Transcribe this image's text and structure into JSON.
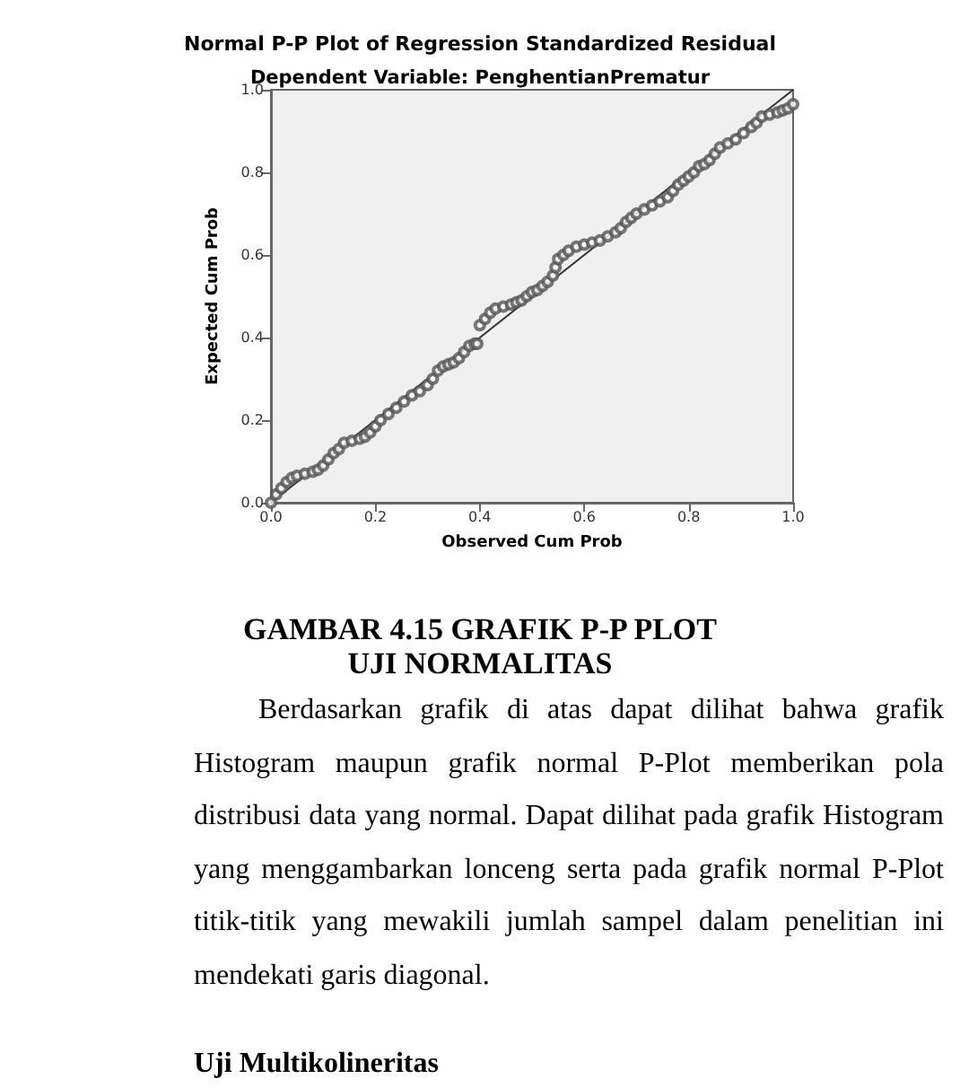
{
  "chart_data": {
    "type": "scatter",
    "title": "Normal P-P Plot of Regression Standardized Residual",
    "subtitle": "Dependent Variable: PenghentianPrematur",
    "xlabel": "Observed Cum Prob",
    "ylabel": "Expected Cum Prob",
    "xlim": [
      0,
      1
    ],
    "ylim": [
      0,
      1
    ],
    "xticks": [
      {
        "value": 0,
        "label": "0.0"
      },
      0.2,
      0.4,
      0.6,
      0.8,
      {
        "value": 1,
        "label": "1.0"
      }
    ],
    "yticks": [
      {
        "value": 0,
        "label": "0.0"
      },
      0.2,
      0.4,
      0.6,
      0.8,
      {
        "value": 1,
        "label": "1.0"
      }
    ],
    "grid": false,
    "marker": "circle",
    "series": [
      {
        "color": "#555555",
        "x": [
          0.0,
          0.01,
          0.02,
          0.03,
          0.04,
          0.05,
          0.065,
          0.08,
          0.09,
          0.1,
          0.11,
          0.12,
          0.13,
          0.14,
          0.155,
          0.17,
          0.18,
          0.19,
          0.2,
          0.21,
          0.225,
          0.24,
          0.255,
          0.27,
          0.285,
          0.3,
          0.31,
          0.32,
          0.33,
          0.34,
          0.35,
          0.36,
          0.37,
          0.38,
          0.39,
          0.395,
          0.4,
          0.41,
          0.42,
          0.43,
          0.445,
          0.46,
          0.47,
          0.48,
          0.49,
          0.5,
          0.51,
          0.52,
          0.53,
          0.54,
          0.545,
          0.55,
          0.56,
          0.57,
          0.585,
          0.6,
          0.615,
          0.63,
          0.645,
          0.66,
          0.67,
          0.68,
          0.69,
          0.7,
          0.715,
          0.73,
          0.745,
          0.76,
          0.77,
          0.78,
          0.79,
          0.8,
          0.81,
          0.82,
          0.83,
          0.84,
          0.85,
          0.86,
          0.875,
          0.89,
          0.905,
          0.92,
          0.93,
          0.94,
          0.955,
          0.97,
          0.98,
          0.99,
          1.0
        ],
        "values": [
          0.0,
          0.02,
          0.035,
          0.05,
          0.06,
          0.065,
          0.07,
          0.075,
          0.08,
          0.09,
          0.105,
          0.12,
          0.13,
          0.145,
          0.15,
          0.155,
          0.16,
          0.17,
          0.185,
          0.2,
          0.215,
          0.23,
          0.245,
          0.26,
          0.27,
          0.285,
          0.3,
          0.32,
          0.33,
          0.335,
          0.34,
          0.35,
          0.365,
          0.38,
          0.385,
          0.385,
          0.43,
          0.445,
          0.46,
          0.47,
          0.475,
          0.48,
          0.485,
          0.49,
          0.5,
          0.51,
          0.515,
          0.525,
          0.535,
          0.55,
          0.57,
          0.59,
          0.6,
          0.61,
          0.62,
          0.625,
          0.63,
          0.635,
          0.645,
          0.655,
          0.665,
          0.68,
          0.69,
          0.7,
          0.71,
          0.72,
          0.73,
          0.74,
          0.755,
          0.77,
          0.78,
          0.79,
          0.8,
          0.815,
          0.82,
          0.83,
          0.845,
          0.86,
          0.87,
          0.88,
          0.895,
          0.91,
          0.92,
          0.935,
          0.94,
          0.945,
          0.95,
          0.955,
          0.965
        ]
      },
      {
        "type": "line",
        "marker": "none",
        "color": "#333333",
        "x": [
          0,
          1
        ],
        "values": [
          0,
          1
        ]
      }
    ],
    "annotations": [
      "GAMBAR 4.15 GRAFIK P-P PLOT",
      "UJI NORMALITAS",
      "Berdasarkan grafik di atas dapat dilihat bahwa grafik Histogram maupun grafik normal P-Plot memberikan pola distribusi data yang normal. Dapat dilihat pada grafik Histogram yang menggambarkan lonceng serta pada grafik normal P-Plot titik-titik yang mewakili jumlah sampel dalam penelitian ini mendekati garis diagonal.",
      "Uji Multikolineritas"
    ]
  }
}
